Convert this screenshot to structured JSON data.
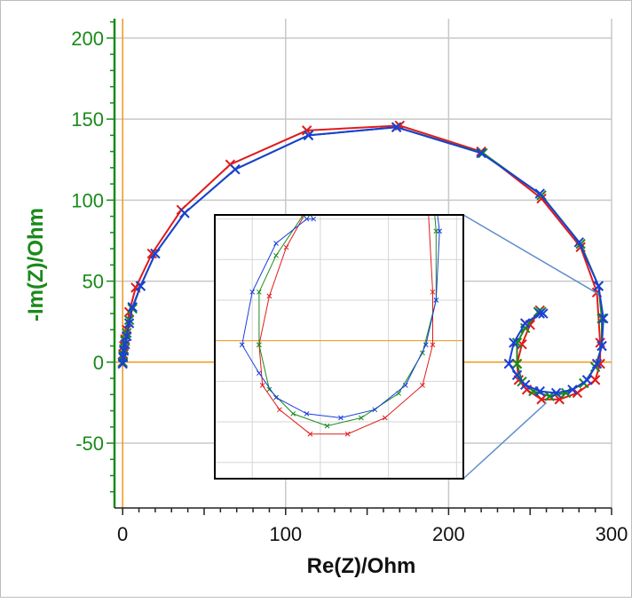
{
  "chart_data": {
    "type": "line",
    "xlabel": "Re(Z)/Ohm",
    "ylabel": "-Im(Z)/Ohm",
    "xlim": [
      -5,
      300
    ],
    "ylim": [
      -90,
      212
    ],
    "x_ticks": [
      "0",
      "100",
      "200",
      "300"
    ],
    "y_ticks": [
      "-50",
      "0",
      "50",
      "100",
      "150",
      "200"
    ],
    "grid": true,
    "legend": "none",
    "reference_lines": {
      "x": 0,
      "y": 0,
      "color": "#f39a1f"
    },
    "series": [
      {
        "color": "#e01b1b",
        "marker": "x",
        "points": [
          [
            0,
            0
          ],
          [
            0.3,
            5
          ],
          [
            0.8,
            10
          ],
          [
            1.5,
            14
          ],
          [
            2.5,
            20
          ],
          [
            4,
            31
          ],
          [
            8,
            46
          ],
          [
            18,
            67
          ],
          [
            36,
            94
          ],
          [
            66,
            122
          ],
          [
            113,
            143
          ],
          [
            170,
            146
          ],
          [
            220,
            130
          ],
          [
            257,
            101
          ],
          [
            281,
            71
          ],
          [
            291,
            43
          ],
          [
            293,
            12
          ],
          [
            293,
            -1
          ],
          [
            290,
            -11
          ],
          [
            279,
            -19
          ],
          [
            268,
            -23
          ],
          [
            257,
            -23
          ],
          [
            248,
            -17
          ],
          [
            243,
            -11
          ],
          [
            242,
            -1
          ],
          [
            245,
            11
          ],
          [
            250,
            23
          ],
          [
            256,
            32
          ]
        ]
      },
      {
        "color": "#1a8a1a",
        "marker": "x",
        "points": [
          [
            0,
            0
          ],
          [
            0.3,
            4
          ],
          [
            0.8,
            8
          ],
          [
            1.5,
            13
          ],
          [
            2.5,
            18
          ],
          [
            4,
            26
          ],
          [
            6,
            33
          ],
          [
            11,
            47
          ],
          [
            20,
            67
          ],
          [
            38,
            92
          ],
          [
            69,
            119
          ],
          [
            114,
            140
          ],
          [
            168,
            145
          ],
          [
            221,
            129
          ],
          [
            257,
            103
          ],
          [
            281,
            73
          ],
          [
            292,
            47
          ],
          [
            294,
            27
          ],
          [
            294,
            10
          ],
          [
            290,
            -3
          ],
          [
            283,
            -13
          ],
          [
            272,
            -19
          ],
          [
            262,
            -21
          ],
          [
            252,
            -18
          ],
          [
            245,
            -12
          ],
          [
            242,
            -1
          ],
          [
            242,
            12
          ],
          [
            247,
            21
          ],
          [
            255,
            31
          ],
          [
            257,
            31
          ]
        ]
      },
      {
        "color": "#1a3fd8",
        "marker": "x",
        "points": [
          [
            0,
            -1
          ],
          [
            0.3,
            3
          ],
          [
            0.8,
            7
          ],
          [
            1.5,
            11
          ],
          [
            2.5,
            16
          ],
          [
            4,
            24
          ],
          [
            6,
            34
          ],
          [
            11,
            47
          ],
          [
            20,
            67
          ],
          [
            38,
            92
          ],
          [
            69,
            119
          ],
          [
            114,
            140
          ],
          [
            168,
            145
          ],
          [
            220,
            129
          ],
          [
            256,
            104
          ],
          [
            280,
            74
          ],
          [
            292,
            47
          ],
          [
            295,
            27
          ],
          [
            294,
            10
          ],
          [
            291,
            -1
          ],
          [
            285,
            -11
          ],
          [
            276,
            -17
          ],
          [
            266,
            -19
          ],
          [
            256,
            -18
          ],
          [
            247,
            -14
          ],
          [
            242,
            -8
          ],
          [
            237,
            -1
          ],
          [
            240,
            12
          ],
          [
            247,
            24
          ],
          [
            256,
            30
          ],
          [
            258,
            30
          ]
        ]
      }
    ]
  }
}
